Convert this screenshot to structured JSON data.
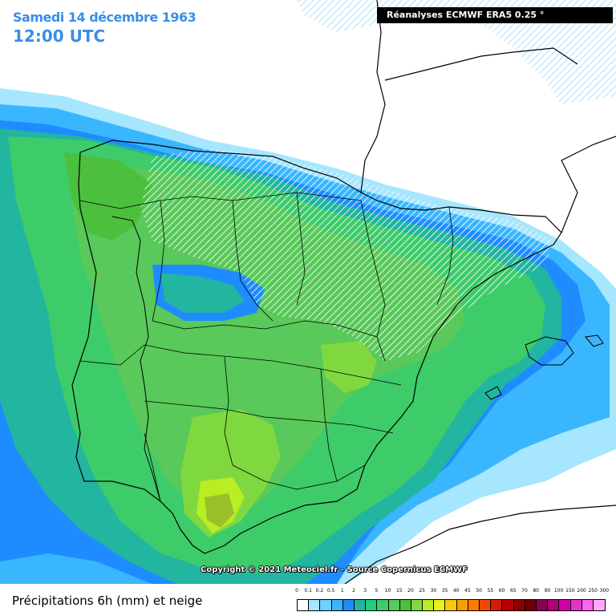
{
  "header": {
    "date": "Samedi 14 décembre 1963",
    "time": "12:00 UTC",
    "source": "Réanalyses ECMWF ERA5 0.25 °"
  },
  "copyright": "Copyright © 2021 Meteociel.fr - Source Copernicus ECMWF",
  "legend": {
    "title": "Précipitations 6h (mm) et neige",
    "ticks": [
      "0",
      "0.1",
      "0.2",
      "0.5",
      "1",
      "2",
      "3",
      "5",
      "10",
      "15",
      "20",
      "25",
      "30",
      "35",
      "40",
      "45",
      "50",
      "55",
      "60",
      "65",
      "70",
      "80",
      "90",
      "100",
      "150",
      "200",
      "250",
      "300"
    ],
    "colors": [
      "#ffffff",
      "#a6e6ff",
      "#6dd0ff",
      "#3ab6ff",
      "#1e8cff",
      "#22b5a0",
      "#20cc80",
      "#3ecb6a",
      "#58c95a",
      "#4cbf3e",
      "#80d840",
      "#b8ee22",
      "#e8f020",
      "#f5c80a",
      "#f5a000",
      "#ff7a00",
      "#f04a00",
      "#d81a00",
      "#b80000",
      "#8e0000",
      "#6e0000",
      "#8a0050",
      "#b0007a",
      "#d000a8",
      "#e830cc",
      "#ff66ee",
      "#ffaaff"
    ]
  },
  "map": {
    "region": "Iberian Peninsula",
    "colors": {
      "sea": "#ffffff",
      "trace": "#a6e6ff",
      "light": "#3ab6ff",
      "moderate": "#1e8cff",
      "teal": "#22b5a0",
      "green": "#3ecb6a",
      "midgreen": "#58c95a",
      "yellowgreen": "#80d840",
      "lime": "#b8ee22",
      "olive": "#9bbf2a",
      "snow_hatch": "#ffffff"
    }
  }
}
